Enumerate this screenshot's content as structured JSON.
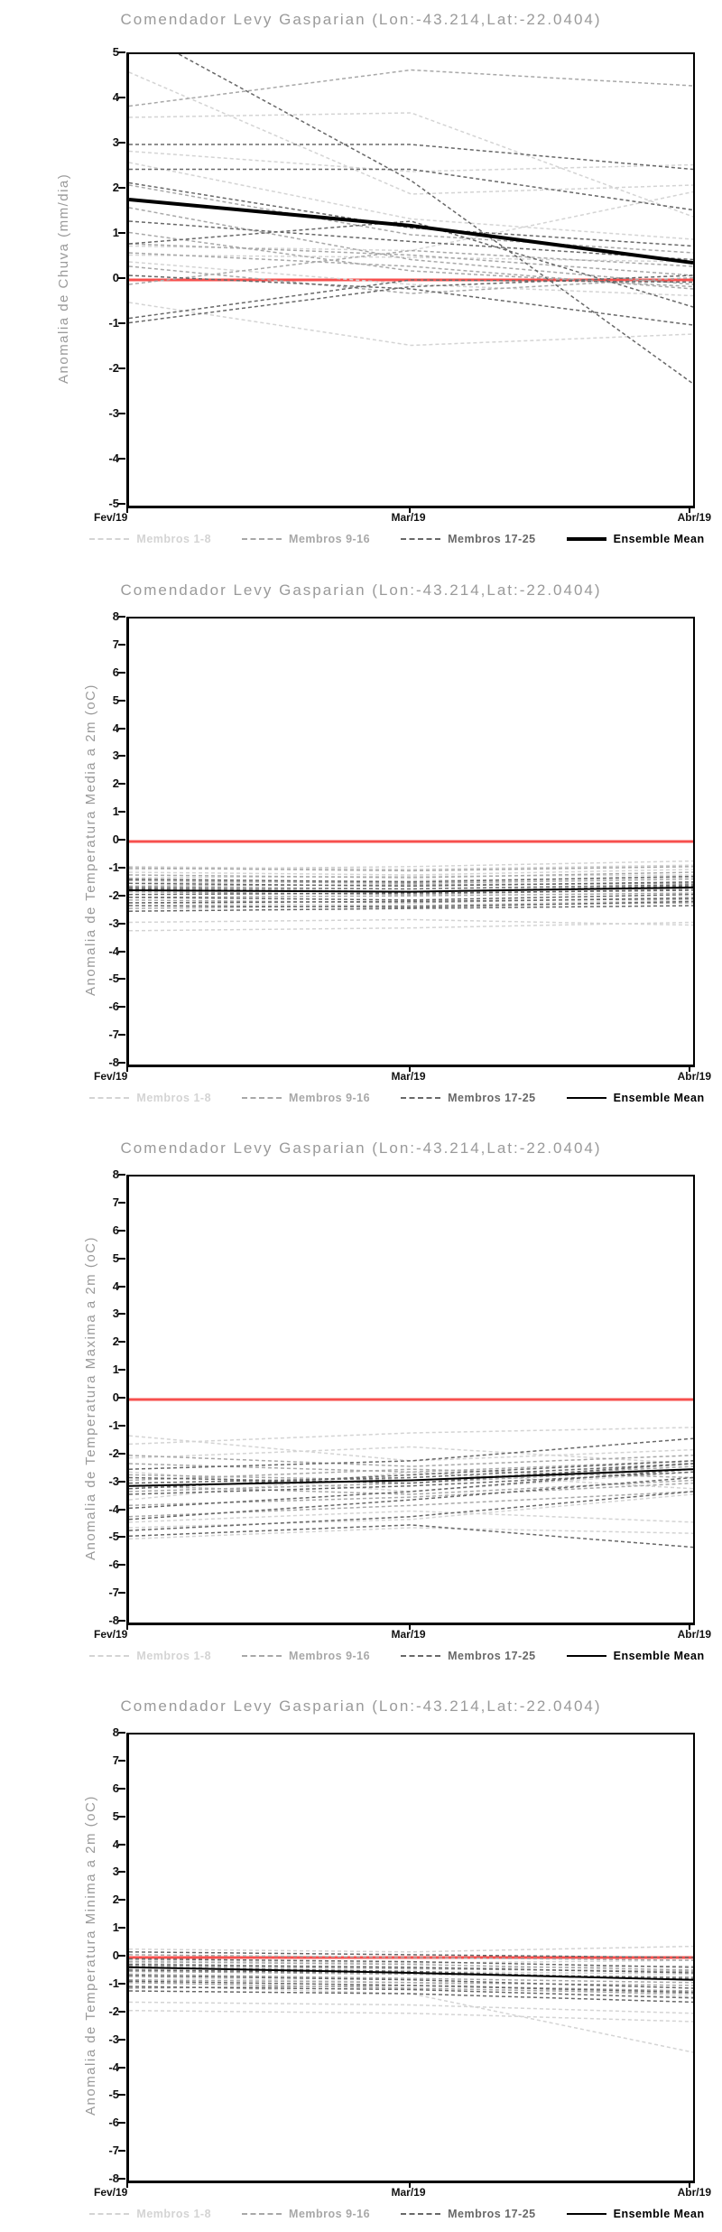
{
  "page_title": "Comendador Levy Gasparian ensemble anomaly forecasts",
  "colors": {
    "background": "#ffffff",
    "title_gray": "#9a9a9a",
    "axis_black": "#000000",
    "zero_line_red": "#f7504e",
    "members_1_8_gray": "#d4d4d4",
    "members_9_16_gray": "#a8a8a8",
    "members_17_25_gray": "#686868",
    "ensemble_mean_black": "#000000"
  },
  "chart_data": [
    {
      "type": "line",
      "title": "Comendador Levy Gasparian (Lon:-43.214,Lat:-22.0404)",
      "ylabel": "Anomalia de Chuva (mm/dia)",
      "x_categories": [
        "Fev/19",
        "Mar/19",
        "Abr/19"
      ],
      "ylim": [
        -5,
        5
      ],
      "ytick_step": 1,
      "grid": false,
      "legend_position": "bottom",
      "zero_line": {
        "y": 0,
        "color": "#f7504e"
      },
      "groups": [
        {
          "name": "Membros 1-8",
          "color": "#d4d4d4",
          "style": "dashed",
          "series": [
            [
              4.6,
              1.9,
              2.1
            ],
            [
              3.6,
              3.7,
              1.4
            ],
            [
              2.85,
              2.4,
              2.55
            ],
            [
              2.6,
              1.35,
              0.9
            ],
            [
              0.75,
              0.65,
              1.95
            ],
            [
              0.55,
              0.5,
              0.4
            ],
            [
              -0.5,
              -1.45,
              -1.2
            ],
            [
              0.4,
              -0.1,
              -0.35
            ]
          ]
        },
        {
          "name": "Membros 9-16",
          "color": "#a8a8a8",
          "style": "dashed",
          "series": [
            [
              3.85,
              4.65,
              4.3
            ],
            [
              1.6,
              0.45,
              -0.1
            ],
            [
              1.05,
              0.2,
              -0.15
            ],
            [
              2.1,
              1.0,
              0.6
            ],
            [
              0.8,
              0.55,
              0.1
            ],
            [
              0.3,
              -0.3,
              0.05
            ],
            [
              -0.1,
              0.65,
              0.3
            ],
            [
              0.6,
              0.3,
              -0.2
            ]
          ]
        },
        {
          "name": "Membros 17-25",
          "color": "#686868",
          "style": "dashed",
          "series": [
            [
              3.0,
              3.0,
              2.45
            ],
            [
              2.45,
              2.45,
              1.55
            ],
            [
              5.6,
              2.2,
              -2.3
            ],
            [
              2.15,
              1.15,
              0.75
            ],
            [
              -0.85,
              0.0,
              -0.05
            ],
            [
              -0.95,
              -0.15,
              0.1
            ],
            [
              0.1,
              -0.2,
              -1.0
            ],
            [
              0.8,
              1.3,
              -0.6
            ],
            [
              1.3,
              0.85,
              0.45
            ]
          ]
        }
      ],
      "ensemble_mean": {
        "name": "Ensemble Mean",
        "color": "#000000",
        "values": [
          1.78,
          1.2,
          0.38
        ]
      }
    },
    {
      "type": "line",
      "title": "Comendador Levy Gasparian (Lon:-43.214,Lat:-22.0404)",
      "ylabel": "Anomalia de Temperatura Media a 2m (oC)",
      "x_categories": [
        "Fev/19",
        "Mar/19",
        "Abr/19"
      ],
      "ylim": [
        -8,
        8
      ],
      "ytick_step": 1,
      "grid": false,
      "legend_position": "bottom",
      "zero_line": {
        "y": 0,
        "color": "#f7504e"
      },
      "groups": [
        {
          "name": "Membros 1-8",
          "color": "#d4d4d4",
          "style": "dashed",
          "series": [
            [
              -0.9,
              -1.0,
              -0.85
            ],
            [
              -1.1,
              -1.2,
              -1.0
            ],
            [
              -1.3,
              -1.25,
              -1.2
            ],
            [
              -1.5,
              -1.4,
              -1.3
            ],
            [
              -2.9,
              -2.8,
              -3.0
            ],
            [
              -3.2,
              -3.1,
              -2.9
            ],
            [
              -1.0,
              -0.9,
              -0.7
            ],
            [
              -2.2,
              -2.3,
              -2.1
            ]
          ]
        },
        {
          "name": "Membros 9-16",
          "color": "#a8a8a8",
          "style": "dashed",
          "series": [
            [
              -1.2,
              -1.3,
              -1.1
            ],
            [
              -1.4,
              -1.5,
              -1.35
            ],
            [
              -1.6,
              -1.55,
              -1.5
            ],
            [
              -1.8,
              -1.9,
              -1.7
            ],
            [
              -2.0,
              -1.95,
              -1.85
            ],
            [
              -2.1,
              -2.2,
              -2.0
            ],
            [
              -2.4,
              -2.3,
              -2.2
            ],
            [
              -0.95,
              -1.05,
              -0.9
            ]
          ]
        },
        {
          "name": "Membros 17-25",
          "color": "#686868",
          "style": "dashed",
          "series": [
            [
              -1.5,
              -1.6,
              -1.45
            ],
            [
              -1.7,
              -1.8,
              -1.6
            ],
            [
              -1.9,
              -1.85,
              -1.75
            ],
            [
              -2.0,
              -2.1,
              -1.9
            ],
            [
              -2.2,
              -2.15,
              -2.05
            ],
            [
              -2.5,
              -2.4,
              -2.3
            ],
            [
              -1.35,
              -1.45,
              -1.25
            ],
            [
              -1.65,
              -1.7,
              -1.55
            ],
            [
              -2.3,
              -2.35,
              -2.15
            ]
          ]
        }
      ],
      "ensemble_mean": {
        "name": "Ensemble Mean",
        "color": "#000000",
        "values": [
          -1.75,
          -1.8,
          -1.65
        ]
      }
    },
    {
      "type": "line",
      "title": "Comendador Levy Gasparian (Lon:-43.214,Lat:-22.0404)",
      "ylabel": "Anomalia de Temperatura Maxima a 2m (oC)",
      "x_categories": [
        "Fev/19",
        "Mar/19",
        "Abr/19"
      ],
      "ylim": [
        -8,
        8
      ],
      "ytick_step": 1,
      "grid": false,
      "legend_position": "bottom",
      "zero_line": {
        "y": 0,
        "color": "#f7504e"
      },
      "groups": [
        {
          "name": "Membros 1-8",
          "color": "#d4d4d4",
          "style": "dashed",
          "series": [
            [
              -1.6,
              -1.2,
              -1.0
            ],
            [
              -2.1,
              -1.7,
              -2.3
            ],
            [
              -2.6,
              -3.3,
              -2.6
            ],
            [
              -4.4,
              -4.0,
              -4.4
            ],
            [
              -4.6,
              -4.3,
              -3.4
            ],
            [
              -1.3,
              -2.2,
              -1.8
            ],
            [
              -3.6,
              -2.6,
              -3.2
            ],
            [
              -5.0,
              -4.6,
              -4.8
            ]
          ]
        },
        {
          "name": "Membros 9-16",
          "color": "#a8a8a8",
          "style": "dashed",
          "series": [
            [
              -2.3,
              -2.6,
              -2.2
            ],
            [
              -2.9,
              -2.5,
              -2.8
            ],
            [
              -3.3,
              -3.0,
              -2.5
            ],
            [
              -3.8,
              -3.5,
              -3.0
            ],
            [
              -4.2,
              -3.8,
              -3.3
            ],
            [
              -2.0,
              -2.4,
              -2.0
            ],
            [
              -3.1,
              -3.4,
              -2.9
            ],
            [
              -2.7,
              -2.9,
              -2.4
            ]
          ]
        },
        {
          "name": "Membros 17-25",
          "color": "#686868",
          "style": "dashed",
          "series": [
            [
              -2.5,
              -2.2,
              -1.4
            ],
            [
              -3.0,
              -2.8,
              -2.3
            ],
            [
              -3.4,
              -3.1,
              -2.6
            ],
            [
              -3.9,
              -3.3,
              -2.5
            ],
            [
              -4.3,
              -3.6,
              -2.8
            ],
            [
              -4.7,
              -4.2,
              -3.3
            ],
            [
              -2.8,
              -3.0,
              -2.3
            ],
            [
              -3.2,
              -2.7,
              -2.2
            ],
            [
              -4.9,
              -4.5,
              -5.3
            ]
          ]
        }
      ],
      "ensemble_mean": {
        "name": "Ensemble Mean",
        "color": "#000000",
        "values": [
          -3.1,
          -2.9,
          -2.5
        ]
      }
    },
    {
      "type": "line",
      "title": "Comendador Levy Gasparian (Lon:-43.214,Lat:-22.0404)",
      "ylabel": "Anomalia de Temperatura Minima a 2m (oC)",
      "x_categories": [
        "Fev/19",
        "Mar/19",
        "Abr/19"
      ],
      "ylim": [
        -8,
        8
      ],
      "ytick_step": 1,
      "grid": false,
      "legend_position": "bottom",
      "zero_line": {
        "y": 0,
        "color": "#f7504e"
      },
      "groups": [
        {
          "name": "Membros 1-8",
          "color": "#d4d4d4",
          "style": "dashed",
          "series": [
            [
              0.3,
              0.2,
              0.4
            ],
            [
              -0.1,
              -0.2,
              -0.1
            ],
            [
              -0.4,
              -0.5,
              -0.6
            ],
            [
              -1.9,
              -2.0,
              -2.3
            ],
            [
              -1.0,
              -1.3,
              -3.4
            ],
            [
              -0.2,
              -0.4,
              -0.3
            ],
            [
              -1.6,
              -1.7,
              -2.0
            ],
            [
              -0.7,
              -0.9,
              -1.4
            ]
          ]
        },
        {
          "name": "Membros 9-16",
          "color": "#a8a8a8",
          "style": "dashed",
          "series": [
            [
              0.1,
              0.0,
              -0.1
            ],
            [
              -0.3,
              -0.4,
              -0.5
            ],
            [
              -0.5,
              -0.6,
              -0.7
            ],
            [
              -0.8,
              -0.9,
              -1.0
            ],
            [
              -1.1,
              -1.0,
              -1.2
            ],
            [
              -0.15,
              -0.25,
              -0.45
            ],
            [
              -0.6,
              -0.75,
              -0.9
            ],
            [
              -0.9,
              -1.1,
              -1.3
            ]
          ]
        },
        {
          "name": "Membros 17-25",
          "color": "#686868",
          "style": "dashed",
          "series": [
            [
              0.2,
              0.1,
              0.0
            ],
            [
              -0.25,
              -0.35,
              -0.55
            ],
            [
              -0.45,
              -0.55,
              -0.75
            ],
            [
              -0.65,
              -0.8,
              -1.1
            ],
            [
              -0.85,
              -1.0,
              -1.25
            ],
            [
              -1.05,
              -1.15,
              -1.45
            ],
            [
              -0.05,
              -0.15,
              -0.35
            ],
            [
              -0.35,
              -0.5,
              -0.8
            ],
            [
              -1.2,
              -1.3,
              -1.6
            ]
          ]
        }
      ],
      "ensemble_mean": {
        "name": "Ensemble Mean",
        "color": "#000000",
        "values": [
          -0.35,
          -0.55,
          -0.8
        ]
      }
    }
  ]
}
